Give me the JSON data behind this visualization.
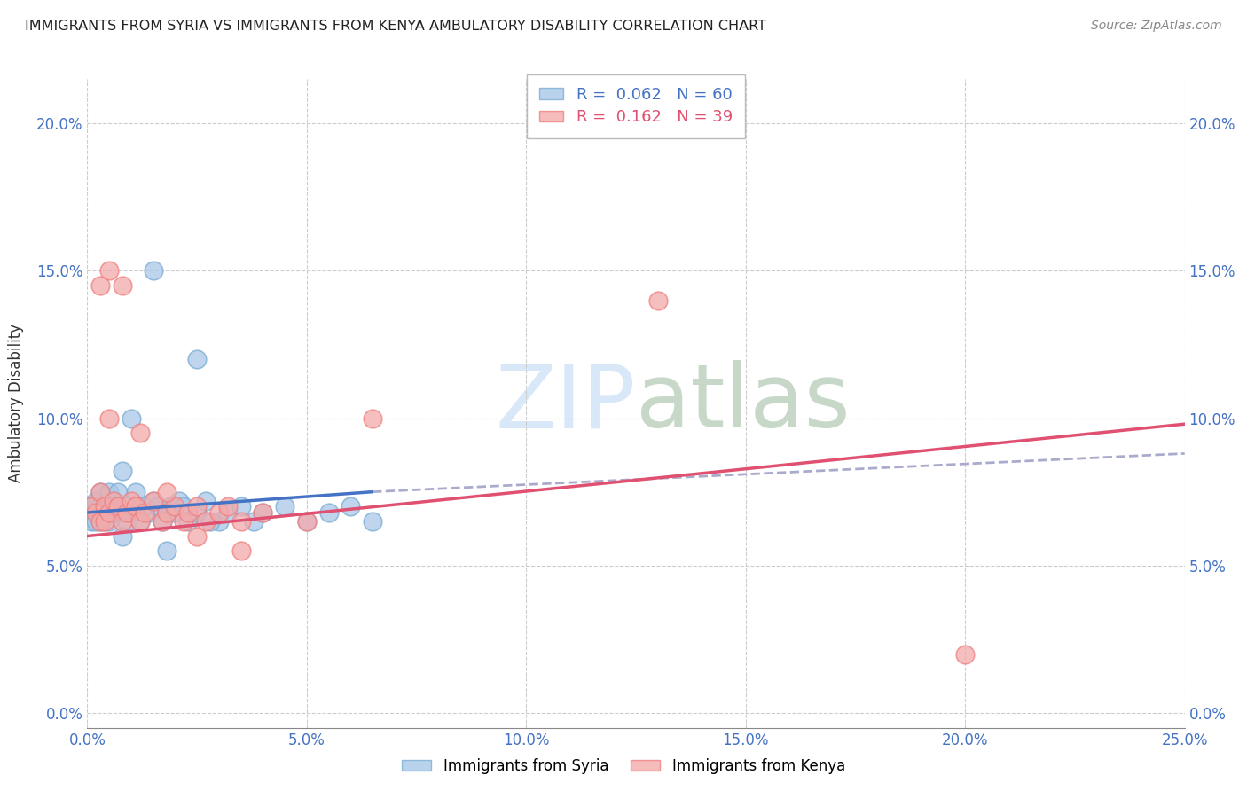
{
  "title": "IMMIGRANTS FROM SYRIA VS IMMIGRANTS FROM KENYA AMBULATORY DISABILITY CORRELATION CHART",
  "source": "Source: ZipAtlas.com",
  "ylabel": "Ambulatory Disability",
  "xlim": [
    0.0,
    0.25
  ],
  "ylim": [
    -0.005,
    0.215
  ],
  "syria_R": "0.062",
  "syria_N": "60",
  "kenya_R": "0.162",
  "kenya_N": "39",
  "syria_color": "#a8c8e8",
  "kenya_color": "#f4aaaa",
  "syria_scatter_edgecolor": "#7aadd4",
  "kenya_scatter_edgecolor": "#f08080",
  "syria_line_color": "#4472c4",
  "kenya_line_color": "#e05070",
  "dashed_line_color": "#aaaacc",
  "watermark_color": "#d8e8f8",
  "legend_entries": [
    "Immigrants from Syria",
    "Immigrants from Kenya"
  ],
  "x_tick_vals": [
    0.0,
    0.05,
    0.1,
    0.15,
    0.2,
    0.25
  ],
  "y_tick_vals": [
    0.0,
    0.05,
    0.1,
    0.15,
    0.2
  ],
  "tick_color": "#4472c4",
  "grid_color": "#cccccc",
  "syria_scatter_x": [
    0.001,
    0.001,
    0.001,
    0.002,
    0.002,
    0.002,
    0.002,
    0.003,
    0.003,
    0.003,
    0.003,
    0.004,
    0.004,
    0.004,
    0.005,
    0.005,
    0.005,
    0.005,
    0.006,
    0.006,
    0.006,
    0.007,
    0.007,
    0.008,
    0.008,
    0.009,
    0.009,
    0.01,
    0.01,
    0.011,
    0.011,
    0.012,
    0.013,
    0.014,
    0.015,
    0.016,
    0.017,
    0.018,
    0.019,
    0.02,
    0.021,
    0.022,
    0.023,
    0.025,
    0.027,
    0.03,
    0.032,
    0.035,
    0.038,
    0.04,
    0.045,
    0.05,
    0.055,
    0.06,
    0.065,
    0.025,
    0.028,
    0.015,
    0.018,
    0.008
  ],
  "syria_scatter_y": [
    0.07,
    0.068,
    0.065,
    0.07,
    0.068,
    0.065,
    0.072,
    0.07,
    0.068,
    0.065,
    0.075,
    0.07,
    0.068,
    0.065,
    0.07,
    0.068,
    0.065,
    0.075,
    0.07,
    0.068,
    0.072,
    0.07,
    0.075,
    0.068,
    0.082,
    0.07,
    0.065,
    0.068,
    0.1,
    0.07,
    0.075,
    0.065,
    0.07,
    0.068,
    0.072,
    0.07,
    0.065,
    0.068,
    0.07,
    0.068,
    0.072,
    0.07,
    0.065,
    0.068,
    0.072,
    0.065,
    0.068,
    0.07,
    0.065,
    0.068,
    0.07,
    0.065,
    0.068,
    0.07,
    0.065,
    0.12,
    0.065,
    0.15,
    0.055,
    0.06
  ],
  "kenya_scatter_x": [
    0.001,
    0.002,
    0.003,
    0.003,
    0.004,
    0.004,
    0.005,
    0.005,
    0.006,
    0.007,
    0.008,
    0.009,
    0.01,
    0.011,
    0.012,
    0.013,
    0.015,
    0.017,
    0.018,
    0.02,
    0.022,
    0.023,
    0.025,
    0.027,
    0.03,
    0.032,
    0.035,
    0.04,
    0.05,
    0.003,
    0.005,
    0.008,
    0.012,
    0.018,
    0.13,
    0.2,
    0.025,
    0.035,
    0.065
  ],
  "kenya_scatter_y": [
    0.07,
    0.068,
    0.065,
    0.075,
    0.07,
    0.065,
    0.068,
    0.15,
    0.072,
    0.07,
    0.065,
    0.068,
    0.072,
    0.07,
    0.065,
    0.068,
    0.072,
    0.065,
    0.068,
    0.07,
    0.065,
    0.068,
    0.07,
    0.065,
    0.068,
    0.07,
    0.065,
    0.068,
    0.065,
    0.145,
    0.1,
    0.145,
    0.095,
    0.075,
    0.14,
    0.02,
    0.06,
    0.055,
    0.1
  ],
  "syria_line_start_x": 0.0,
  "syria_line_start_y": 0.068,
  "syria_line_end_x": 0.065,
  "syria_line_end_y": 0.075,
  "kenya_line_start_x": 0.0,
  "kenya_line_start_y": 0.06,
  "kenya_line_end_x": 0.25,
  "kenya_line_end_y": 0.098,
  "dashed_line_start_x": 0.065,
  "dashed_line_start_y": 0.075,
  "dashed_line_end_x": 0.25,
  "dashed_line_end_y": 0.088
}
